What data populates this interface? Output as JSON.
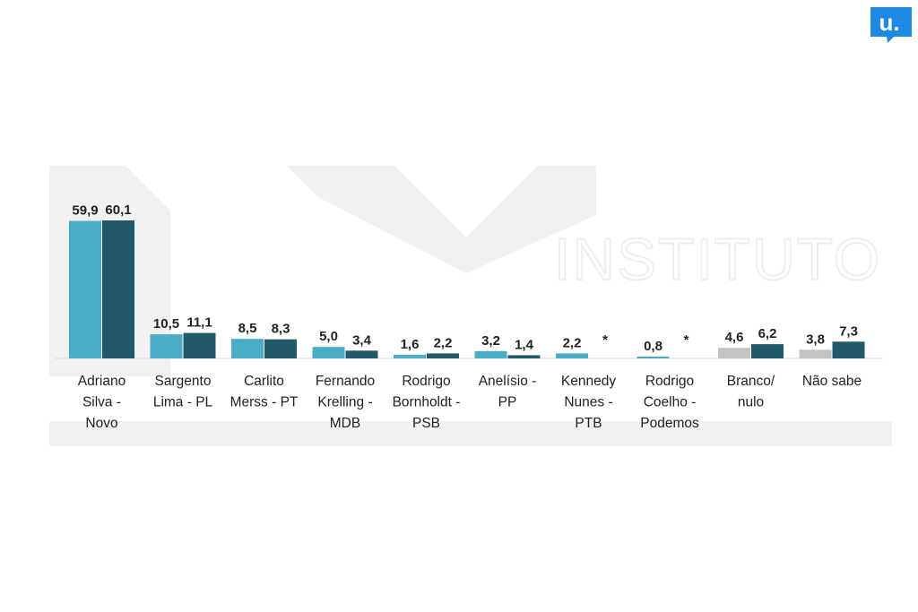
{
  "logo": {
    "letter": "u.",
    "color": "#1e88e5"
  },
  "watermark": {
    "text": "INSTITUTO"
  },
  "colors": {
    "light": "#4bacc6",
    "dark": "#215968",
    "gray": "#c3c3c3",
    "axis": "#d9d9d9"
  },
  "chart_data": {
    "type": "bar",
    "categories": [
      [
        "Adriano",
        "Silva -",
        "Novo"
      ],
      [
        "Sargento",
        "Lima - PL"
      ],
      [
        "Carlito",
        "Merss - PT"
      ],
      [
        "Fernando",
        "Krelling -",
        "MDB"
      ],
      [
        "Rodrigo",
        "Bornholdt -",
        "PSB"
      ],
      [
        "Anelísio -",
        "PP"
      ],
      [
        "Kennedy",
        "Nunes -",
        "PTB"
      ],
      [
        "Rodrigo",
        "Coelho -",
        "Podemos"
      ],
      [
        "Branco/",
        "nulo"
      ],
      [
        "Não sabe"
      ]
    ],
    "series": [
      {
        "values": [
          59.9,
          10.5,
          8.5,
          5.0,
          1.6,
          3.2,
          2.2,
          0.8,
          4.6,
          3.8
        ],
        "labels": [
          "59,9",
          "10,5",
          "8,5",
          "5,0",
          "1,6",
          "3,2",
          "2,2",
          "0,8",
          "4,6",
          "3,8"
        ]
      },
      {
        "values": [
          60.1,
          11.1,
          8.3,
          3.4,
          2.2,
          1.4,
          null,
          null,
          6.2,
          7.3
        ],
        "labels": [
          "60,1",
          "11,1",
          "8,3",
          "3,4",
          "2,2",
          "1,4",
          "*",
          "*",
          "6,2",
          "7,3"
        ]
      }
    ],
    "ylim": [
      0,
      60.1
    ],
    "grid": false,
    "legend": "none"
  }
}
